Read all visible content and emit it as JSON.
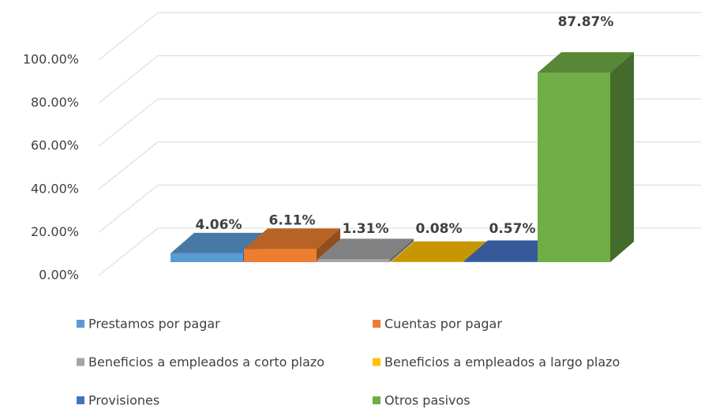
{
  "chart_data": {
    "type": "bar",
    "categories": [
      "Prestamos por pagar",
      "Cuentas por pagar",
      "Beneficios a empleados a corto plazo",
      "Beneficios a empleados a largo plazo",
      "Provisiones",
      "Otros pasivos"
    ],
    "values": [
      4.06,
      6.11,
      1.31,
      0.08,
      0.57,
      87.87
    ],
    "value_labels": [
      "4.06%",
      "6.11%",
      "1.31%",
      "0.08%",
      "0.57%",
      "87.87%"
    ],
    "colors": [
      "#5b9bd5",
      "#ed7d31",
      "#a5a5a5",
      "#ffc000",
      "#4472c4",
      "#70ad47"
    ],
    "ylim": [
      0,
      100
    ],
    "yticks": [
      {
        "value": 0,
        "label": "0.00%"
      },
      {
        "value": 20,
        "label": "20.00%"
      },
      {
        "value": 40,
        "label": "40.00%"
      },
      {
        "value": 60,
        "label": "60.00%"
      },
      {
        "value": 80,
        "label": "80.00%"
      },
      {
        "value": 100,
        "label": "100.00%"
      }
    ],
    "grid": true
  }
}
